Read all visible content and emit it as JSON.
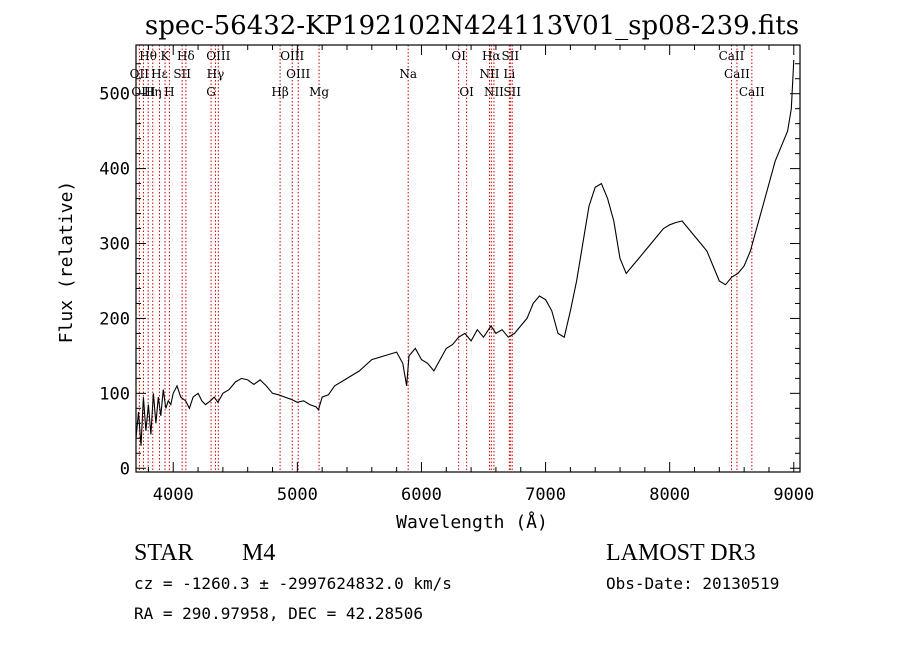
{
  "chart_data": {
    "type": "line",
    "title": "spec-56432-KP192102N424113V01_sp08-239.fits",
    "xlabel": "Wavelength (Å)",
    "ylabel": "Flux (relative)",
    "xlim": [
      3700,
      9050
    ],
    "ylim": [
      -5,
      565
    ],
    "x_ticks": [
      4000,
      5000,
      6000,
      7000,
      8000,
      9000
    ],
    "y_ticks": [
      0,
      100,
      200,
      300,
      400,
      500
    ],
    "series": [
      {
        "name": "flux",
        "x": [
          3700,
          3720,
          3740,
          3760,
          3780,
          3800,
          3820,
          3840,
          3860,
          3880,
          3900,
          3920,
          3940,
          3960,
          3980,
          4000,
          4030,
          4060,
          4100,
          4130,
          4160,
          4200,
          4230,
          4260,
          4300,
          4330,
          4360,
          4400,
          4450,
          4500,
          4550,
          4600,
          4650,
          4700,
          4750,
          4800,
          4850,
          4900,
          4950,
          5000,
          5050,
          5100,
          5150,
          5170,
          5200,
          5250,
          5300,
          5400,
          5500,
          5600,
          5700,
          5800,
          5850,
          5880,
          5900,
          5950,
          6000,
          6050,
          6100,
          6150,
          6200,
          6250,
          6300,
          6350,
          6400,
          6450,
          6500,
          6560,
          6600,
          6650,
          6700,
          6750,
          6800,
          6850,
          6900,
          6950,
          7000,
          7050,
          7100,
          7150,
          7200,
          7250,
          7300,
          7350,
          7400,
          7450,
          7500,
          7550,
          7600,
          7650,
          7700,
          7750,
          7800,
          7850,
          7900,
          7950,
          8000,
          8050,
          8100,
          8150,
          8200,
          8250,
          8300,
          8350,
          8400,
          8450,
          8500,
          8550,
          8600,
          8650,
          8700,
          8750,
          8800,
          8850,
          8900,
          8950,
          8980,
          9000
        ],
        "y": [
          40,
          75,
          30,
          95,
          50,
          85,
          45,
          100,
          60,
          95,
          70,
          105,
          80,
          90,
          85,
          100,
          110,
          95,
          90,
          80,
          95,
          100,
          90,
          85,
          90,
          95,
          88,
          100,
          105,
          115,
          120,
          118,
          112,
          118,
          110,
          100,
          98,
          95,
          92,
          88,
          90,
          85,
          82,
          78,
          95,
          98,
          110,
          120,
          130,
          145,
          150,
          155,
          140,
          110,
          150,
          160,
          145,
          140,
          130,
          145,
          160,
          165,
          175,
          180,
          170,
          185,
          175,
          190,
          180,
          185,
          175,
          180,
          190,
          200,
          220,
          230,
          225,
          210,
          180,
          175,
          210,
          250,
          300,
          350,
          375,
          380,
          360,
          330,
          280,
          260,
          270,
          280,
          290,
          300,
          310,
          320,
          325,
          328,
          330,
          320,
          310,
          300,
          290,
          270,
          250,
          245,
          255,
          260,
          270,
          290,
          320,
          350,
          380,
          410,
          430,
          450,
          480,
          545
        ]
      }
    ],
    "lines_top": [
      {
        "label": "Hθ",
        "x": 3798
      },
      {
        "label": "K",
        "x": 3934
      },
      {
        "label": "Hδ",
        "x": 4102
      },
      {
        "label": "OIII",
        "x": 4363
      },
      {
        "label": "OIII",
        "x": 4959
      },
      {
        "label": "OI",
        "x": 6300
      },
      {
        "label": "Hα",
        "x": 6563
      },
      {
        "label": "SII",
        "x": 6716
      },
      {
        "label": "CaII",
        "x": 8498
      }
    ],
    "lines_mid": [
      {
        "label": "OII",
        "x": 3727
      },
      {
        "label": "Hε",
        "x": 3889
      },
      {
        "label": "SII",
        "x": 4072
      },
      {
        "label": "Hγ",
        "x": 4340
      },
      {
        "label": "OIII",
        "x": 5007
      },
      {
        "label": "Na",
        "x": 5893
      },
      {
        "label": "NII",
        "x": 6548
      },
      {
        "label": "Li",
        "x": 6708
      },
      {
        "label": "CaII",
        "x": 8542
      }
    ],
    "lines_bot": [
      {
        "label": "OIII",
        "x": 3760
      },
      {
        "label": "Hη",
        "x": 3835
      },
      {
        "label": "H",
        "x": 3969
      },
      {
        "label": "G",
        "x": 4305
      },
      {
        "label": "Hβ",
        "x": 4861
      },
      {
        "label": "Mg",
        "x": 5175
      },
      {
        "label": "OI",
        "x": 6364
      },
      {
        "label": "NII",
        "x": 6584
      },
      {
        "label": "SII",
        "x": 6731
      },
      {
        "label": "CaII",
        "x": 8662
      }
    ]
  },
  "info": {
    "class": "STAR",
    "subclass": "M4",
    "survey": "LAMOST DR3",
    "cz": "cz = -1260.3 ± -2997624832.0 km/s",
    "obs_date": "Obs-Date: 20130519",
    "radec": "RA = 290.97958, DEC =  42.28506"
  },
  "colors": {
    "line_marker": "#cc0000",
    "spectrum": "#000000",
    "axes": "#000000"
  }
}
